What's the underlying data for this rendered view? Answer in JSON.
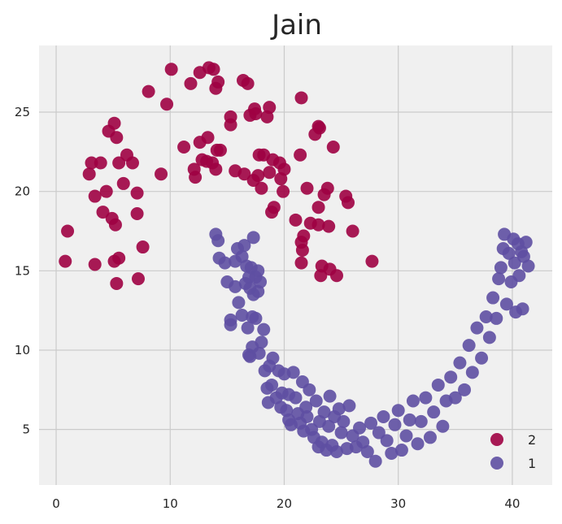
{
  "chart_data": {
    "type": "scatter",
    "title": "Jain",
    "xlabel": "",
    "ylabel": "",
    "xlim": [
      -1.5,
      43.5
    ],
    "ylim": [
      1.5,
      29.2
    ],
    "xticks": [
      0,
      10,
      20,
      30,
      40
    ],
    "yticks": [
      5,
      10,
      15,
      20,
      25
    ],
    "grid": true,
    "legend_position": "bottom-right",
    "series": [
      {
        "name": "2",
        "color": "#9e0142",
        "points": [
          [
            0.8,
            15.6
          ],
          [
            1.0,
            17.5
          ],
          [
            2.9,
            21.1
          ],
          [
            3.1,
            21.8
          ],
          [
            3.4,
            19.7
          ],
          [
            3.4,
            15.4
          ],
          [
            3.9,
            21.8
          ],
          [
            4.1,
            18.7
          ],
          [
            4.4,
            20.0
          ],
          [
            4.6,
            23.8
          ],
          [
            4.9,
            18.3
          ],
          [
            5.1,
            15.6
          ],
          [
            5.2,
            17.9
          ],
          [
            5.1,
            24.3
          ],
          [
            5.3,
            23.4
          ],
          [
            5.5,
            21.8
          ],
          [
            5.3,
            14.2
          ],
          [
            5.5,
            15.8
          ],
          [
            5.9,
            20.5
          ],
          [
            6.2,
            22.3
          ],
          [
            6.7,
            21.8
          ],
          [
            7.1,
            19.9
          ],
          [
            7.1,
            18.6
          ],
          [
            7.2,
            14.5
          ],
          [
            7.6,
            16.5
          ],
          [
            8.1,
            26.3
          ],
          [
            9.2,
            21.1
          ],
          [
            9.7,
            25.5
          ],
          [
            10.1,
            27.7
          ],
          [
            11.2,
            22.8
          ],
          [
            11.8,
            26.8
          ],
          [
            12.2,
            20.9
          ],
          [
            12.1,
            21.4
          ],
          [
            12.6,
            27.5
          ],
          [
            12.6,
            23.1
          ],
          [
            12.8,
            22.0
          ],
          [
            13.2,
            21.9
          ],
          [
            13.3,
            23.4
          ],
          [
            13.4,
            27.8
          ],
          [
            13.7,
            21.8
          ],
          [
            13.8,
            27.7
          ],
          [
            14.0,
            26.5
          ],
          [
            14.0,
            21.4
          ],
          [
            14.2,
            26.9
          ],
          [
            14.1,
            22.6
          ],
          [
            14.4,
            22.6
          ],
          [
            15.3,
            24.7
          ],
          [
            15.3,
            24.2
          ],
          [
            15.7,
            21.3
          ],
          [
            16.4,
            27.0
          ],
          [
            16.5,
            21.1
          ],
          [
            16.8,
            26.8
          ],
          [
            17.0,
            24.8
          ],
          [
            17.3,
            20.7
          ],
          [
            17.4,
            25.2
          ],
          [
            17.5,
            24.9
          ],
          [
            17.7,
            21.0
          ],
          [
            17.8,
            22.3
          ],
          [
            18.0,
            20.2
          ],
          [
            18.2,
            22.3
          ],
          [
            18.5,
            24.7
          ],
          [
            18.7,
            25.3
          ],
          [
            18.7,
            21.2
          ],
          [
            18.9,
            18.7
          ],
          [
            19.0,
            22.0
          ],
          [
            19.1,
            19.0
          ],
          [
            19.6,
            21.8
          ],
          [
            19.7,
            20.8
          ],
          [
            19.9,
            20.0
          ],
          [
            20.0,
            21.4
          ],
          [
            21.0,
            18.2
          ],
          [
            21.4,
            22.3
          ],
          [
            21.5,
            25.9
          ],
          [
            21.5,
            16.8
          ],
          [
            21.6,
            16.3
          ],
          [
            21.5,
            15.5
          ],
          [
            21.7,
            17.2
          ],
          [
            22.0,
            20.2
          ],
          [
            22.3,
            18.0
          ],
          [
            22.7,
            23.6
          ],
          [
            23.0,
            24.1
          ],
          [
            23.0,
            17.9
          ],
          [
            23.0,
            19.0
          ],
          [
            23.1,
            24.0
          ],
          [
            23.2,
            14.7
          ],
          [
            23.3,
            15.3
          ],
          [
            23.5,
            19.8
          ],
          [
            23.8,
            20.2
          ],
          [
            23.9,
            17.8
          ],
          [
            24.0,
            15.1
          ],
          [
            24.3,
            22.8
          ],
          [
            24.6,
            14.7
          ],
          [
            25.4,
            19.7
          ],
          [
            25.6,
            19.3
          ],
          [
            26.0,
            17.5
          ],
          [
            27.7,
            15.6
          ]
        ]
      },
      {
        "name": "1",
        "color": "#5e4fa2",
        "points": [
          [
            14.0,
            17.3
          ],
          [
            14.2,
            16.9
          ],
          [
            14.3,
            15.8
          ],
          [
            14.8,
            15.5
          ],
          [
            15.0,
            14.3
          ],
          [
            15.3,
            11.9
          ],
          [
            15.3,
            11.6
          ],
          [
            15.7,
            15.6
          ],
          [
            15.7,
            14.0
          ],
          [
            15.9,
            16.4
          ],
          [
            16.0,
            13.0
          ],
          [
            16.3,
            15.9
          ],
          [
            16.3,
            12.2
          ],
          [
            16.5,
            16.6
          ],
          [
            16.6,
            14.2
          ],
          [
            16.7,
            15.3
          ],
          [
            16.8,
            11.4
          ],
          [
            16.9,
            9.7
          ],
          [
            16.9,
            14.6
          ],
          [
            17.0,
            9.6
          ],
          [
            17.0,
            13.9
          ],
          [
            17.1,
            15.2
          ],
          [
            17.2,
            12.1
          ],
          [
            17.2,
            10.2
          ],
          [
            17.3,
            13.5
          ],
          [
            17.3,
            17.1
          ],
          [
            17.5,
            14.6
          ],
          [
            17.5,
            12.0
          ],
          [
            17.7,
            15.0
          ],
          [
            17.7,
            13.7
          ],
          [
            17.8,
            9.8
          ],
          [
            17.9,
            14.3
          ],
          [
            18.0,
            10.5
          ],
          [
            18.2,
            11.3
          ],
          [
            18.3,
            8.7
          ],
          [
            18.5,
            7.6
          ],
          [
            18.6,
            6.7
          ],
          [
            18.7,
            9.0
          ],
          [
            18.9,
            7.8
          ],
          [
            19.0,
            9.5
          ],
          [
            19.3,
            7.0
          ],
          [
            19.5,
            8.7
          ],
          [
            19.7,
            6.4
          ],
          [
            19.8,
            7.3
          ],
          [
            20.0,
            8.5
          ],
          [
            20.2,
            6.2
          ],
          [
            20.4,
            5.6
          ],
          [
            20.4,
            7.2
          ],
          [
            20.6,
            5.3
          ],
          [
            20.8,
            8.6
          ],
          [
            21.0,
            7.0
          ],
          [
            21.2,
            6.0
          ],
          [
            21.4,
            5.4
          ],
          [
            21.6,
            8.0
          ],
          [
            21.7,
            4.9
          ],
          [
            21.9,
            6.4
          ],
          [
            22.0,
            5.8
          ],
          [
            22.2,
            7.5
          ],
          [
            22.4,
            5.0
          ],
          [
            22.6,
            4.5
          ],
          [
            22.8,
            6.8
          ],
          [
            23.0,
            3.9
          ],
          [
            23.1,
            5.5
          ],
          [
            23.3,
            4.2
          ],
          [
            23.5,
            6.1
          ],
          [
            23.7,
            3.7
          ],
          [
            23.9,
            5.2
          ],
          [
            24.0,
            7.1
          ],
          [
            24.2,
            4.0
          ],
          [
            24.4,
            5.8
          ],
          [
            24.6,
            3.6
          ],
          [
            24.8,
            6.3
          ],
          [
            25.0,
            4.8
          ],
          [
            25.2,
            5.5
          ],
          [
            25.5,
            3.8
          ],
          [
            25.7,
            6.5
          ],
          [
            26.0,
            4.6
          ],
          [
            26.3,
            3.9
          ],
          [
            26.6,
            5.1
          ],
          [
            26.9,
            4.2
          ],
          [
            27.3,
            3.6
          ],
          [
            27.6,
            5.4
          ],
          [
            28.0,
            3.0
          ],
          [
            28.3,
            4.8
          ],
          [
            28.7,
            5.8
          ],
          [
            29.0,
            4.3
          ],
          [
            29.4,
            3.5
          ],
          [
            29.7,
            5.3
          ],
          [
            30.0,
            6.2
          ],
          [
            30.3,
            3.7
          ],
          [
            30.7,
            4.6
          ],
          [
            31.0,
            5.6
          ],
          [
            31.3,
            6.8
          ],
          [
            31.7,
            4.1
          ],
          [
            32.0,
            5.5
          ],
          [
            32.4,
            7.0
          ],
          [
            32.8,
            4.5
          ],
          [
            33.1,
            6.1
          ],
          [
            33.5,
            7.8
          ],
          [
            33.9,
            5.2
          ],
          [
            34.2,
            6.8
          ],
          [
            34.6,
            8.3
          ],
          [
            35.0,
            7.0
          ],
          [
            35.4,
            9.2
          ],
          [
            35.8,
            7.5
          ],
          [
            36.2,
            10.3
          ],
          [
            36.5,
            8.6
          ],
          [
            36.9,
            11.4
          ],
          [
            37.3,
            9.5
          ],
          [
            37.7,
            12.1
          ],
          [
            38.0,
            10.8
          ],
          [
            38.3,
            13.3
          ],
          [
            38.6,
            12.0
          ],
          [
            38.8,
            14.5
          ],
          [
            39.0,
            15.2
          ],
          [
            39.2,
            16.4
          ],
          [
            39.3,
            17.3
          ],
          [
            39.5,
            12.9
          ],
          [
            39.7,
            16.1
          ],
          [
            39.9,
            14.3
          ],
          [
            40.1,
            17.0
          ],
          [
            40.2,
            15.5
          ],
          [
            40.3,
            12.4
          ],
          [
            40.5,
            16.7
          ],
          [
            40.6,
            14.7
          ],
          [
            40.8,
            16.2
          ],
          [
            40.9,
            12.6
          ],
          [
            41.0,
            15.9
          ],
          [
            41.2,
            16.8
          ],
          [
            41.4,
            15.3
          ]
        ]
      }
    ]
  }
}
